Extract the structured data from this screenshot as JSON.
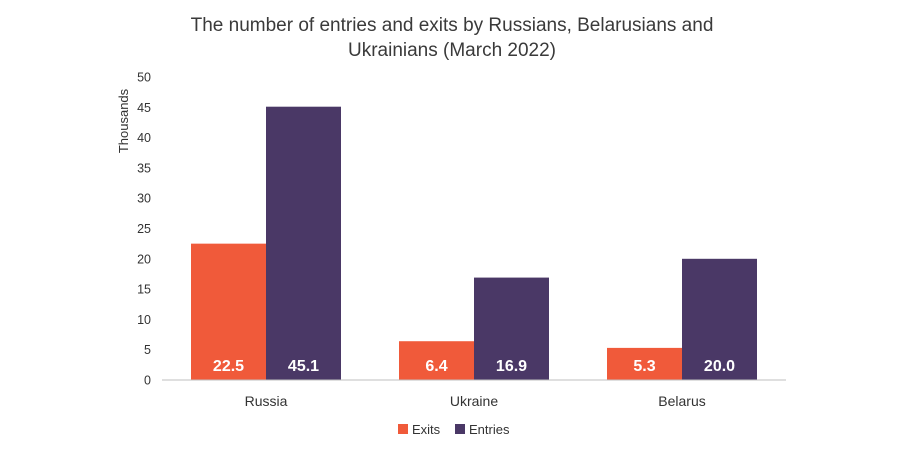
{
  "chart_data": {
    "type": "bar",
    "title_lines": [
      "The number of entries and exits by Russians, Belarusians and",
      "Ukrainians (March 2022)"
    ],
    "ylabel": "Thousands",
    "xlabel": "",
    "ylim": [
      0,
      50
    ],
    "yticks": [
      "0",
      "5",
      "10",
      "15",
      "20",
      "25",
      "30",
      "35",
      "40",
      "45",
      "50"
    ],
    "categories": [
      "Russia",
      "Ukraine",
      "Belarus"
    ],
    "series": [
      {
        "name": "Exits",
        "color": "#f05a3a",
        "values": [
          22.5,
          6.4,
          5.3
        ],
        "labels": [
          "22.5",
          "6.4",
          "5.3"
        ]
      },
      {
        "name": "Entries",
        "color": "#4a3866",
        "values": [
          45.1,
          16.9,
          20.0
        ],
        "labels": [
          "45.1",
          "16.9",
          "20.0"
        ]
      }
    ],
    "grid": false,
    "legend_position": "bottom-center"
  }
}
